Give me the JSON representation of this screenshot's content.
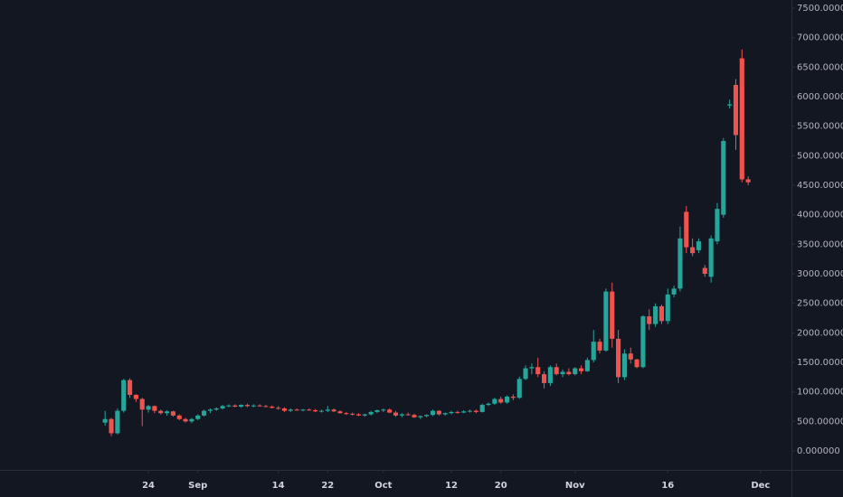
{
  "chart_data": {
    "type": "candlestick",
    "up_color": "#26a69a",
    "down_color": "#ef5350",
    "xlim": [
      -17,
      111
    ],
    "xticks": [
      {
        "value": 7,
        "label": "24"
      },
      {
        "value": 15,
        "label": "Sep"
      },
      {
        "value": 28,
        "label": "14"
      },
      {
        "value": 36,
        "label": "22"
      },
      {
        "value": 45,
        "label": "Oct"
      },
      {
        "value": 56,
        "label": "12"
      },
      {
        "value": 64,
        "label": "20"
      },
      {
        "value": 76,
        "label": "Nov"
      },
      {
        "value": 91,
        "label": "16"
      },
      {
        "value": 106,
        "label": "Dec"
      }
    ],
    "ylim": [
      -321,
      7638
    ],
    "yticks": [
      {
        "value": 0,
        "label": "0.000000"
      },
      {
        "value": 500,
        "label": "500.000000"
      },
      {
        "value": 1000,
        "label": "1000.000000"
      },
      {
        "value": 1500,
        "label": "1500.000000"
      },
      {
        "value": 2000,
        "label": "2000.000000"
      },
      {
        "value": 2500,
        "label": "2500.000000"
      },
      {
        "value": 3000,
        "label": "3000.000000"
      },
      {
        "value": 3500,
        "label": "3500.000000"
      },
      {
        "value": 4000,
        "label": "4000.000000"
      },
      {
        "value": 4500,
        "label": "4500.000000"
      },
      {
        "value": 5000,
        "label": "5000.000000"
      },
      {
        "value": 5500,
        "label": "5500.000000"
      },
      {
        "value": 6000,
        "label": "6000.000000"
      },
      {
        "value": 6500,
        "label": "6500.000000"
      },
      {
        "value": 7000,
        "label": "7000.000000"
      },
      {
        "value": 7500,
        "label": "7500.000000"
      }
    ],
    "open": [
      480,
      540,
      300,
      680,
      1200,
      950,
      880,
      700,
      760,
      680,
      640,
      670,
      600,
      540,
      500,
      540,
      600,
      680,
      700,
      720,
      760,
      770,
      750,
      780,
      760,
      770,
      760,
      750,
      730,
      720,
      680,
      700,
      690,
      700,
      690,
      670,
      680,
      700,
      670,
      640,
      630,
      620,
      600,
      620,
      660,
      690,
      700,
      650,
      600,
      620,
      610,
      570,
      590,
      610,
      680,
      620,
      640,
      660,
      650,
      670,
      680,
      660,
      780,
      800,
      880,
      820,
      920,
      900,
      1220,
      1400,
      1420,
      1300,
      1150,
      1420,
      1300,
      1340,
      1300,
      1400,
      1350,
      1540,
      1850,
      1700,
      2700,
      1900,
      1250,
      1650,
      1550,
      1420,
      2280,
      2150,
      2450,
      2200,
      2650,
      2750,
      4050,
      3450,
      3400,
      3100,
      2950,
      3550,
      4000,
      5850,
      6200,
      6650,
      4600
    ],
    "high": [
      680,
      560,
      720,
      1220,
      1230,
      960,
      900,
      780,
      770,
      700,
      690,
      680,
      620,
      560,
      560,
      620,
      700,
      720,
      740,
      780,
      790,
      790,
      790,
      800,
      790,
      790,
      780,
      770,
      760,
      740,
      720,
      720,
      710,
      720,
      710,
      700,
      760,
      720,
      690,
      660,
      650,
      640,
      630,
      680,
      700,
      720,
      720,
      680,
      640,
      650,
      630,
      600,
      620,
      700,
      690,
      650,
      680,
      680,
      690,
      700,
      700,
      800,
      820,
      900,
      920,
      940,
      960,
      1260,
      1450,
      1480,
      1580,
      1350,
      1450,
      1480,
      1380,
      1400,
      1420,
      1450,
      1580,
      2050,
      1900,
      2750,
      2850,
      2050,
      1720,
      1750,
      1560,
      2300,
      2400,
      2500,
      2480,
      2750,
      2800,
      3800,
      4150,
      3600,
      3600,
      3150,
      3650,
      4200,
      5300,
      5950,
      6300,
      6800,
      4650
    ],
    "low": [
      430,
      250,
      280,
      650,
      900,
      830,
      420,
      650,
      640,
      620,
      600,
      580,
      520,
      480,
      470,
      520,
      580,
      640,
      680,
      700,
      740,
      740,
      730,
      740,
      740,
      750,
      740,
      720,
      700,
      660,
      660,
      680,
      670,
      680,
      660,
      650,
      660,
      660,
      630,
      610,
      600,
      590,
      580,
      600,
      640,
      660,
      640,
      580,
      570,
      600,
      560,
      540,
      570,
      590,
      600,
      600,
      620,
      630,
      640,
      650,
      640,
      650,
      760,
      780,
      800,
      800,
      860,
      880,
      1200,
      1300,
      1250,
      1060,
      1100,
      1280,
      1250,
      1280,
      1280,
      1300,
      1340,
      1500,
      1650,
      1680,
      1750,
      1150,
      1200,
      1480,
      1400,
      1400,
      2050,
      2100,
      2150,
      2150,
      2600,
      2700,
      3350,
      3300,
      3350,
      2950,
      2850,
      3500,
      3950,
      5800,
      5100,
      4550,
      4500
    ],
    "close": [
      540,
      300,
      680,
      1200,
      950,
      880,
      700,
      760,
      680,
      640,
      670,
      600,
      540,
      500,
      540,
      600,
      680,
      700,
      720,
      760,
      770,
      750,
      780,
      760,
      770,
      760,
      750,
      730,
      720,
      680,
      700,
      690,
      700,
      690,
      670,
      680,
      700,
      670,
      640,
      630,
      620,
      600,
      620,
      660,
      690,
      700,
      650,
      600,
      620,
      610,
      570,
      590,
      610,
      680,
      620,
      640,
      660,
      650,
      670,
      680,
      660,
      780,
      800,
      880,
      820,
      920,
      900,
      1220,
      1400,
      1420,
      1300,
      1150,
      1420,
      1300,
      1340,
      1300,
      1400,
      1350,
      1540,
      1850,
      1700,
      2700,
      1900,
      1250,
      1650,
      1550,
      1420,
      2280,
      2150,
      2450,
      2200,
      2650,
      2750,
      3600,
      3450,
      3350,
      3550,
      3000,
      3600,
      4100,
      5250,
      5870,
      5350,
      4600,
      4550
    ]
  }
}
